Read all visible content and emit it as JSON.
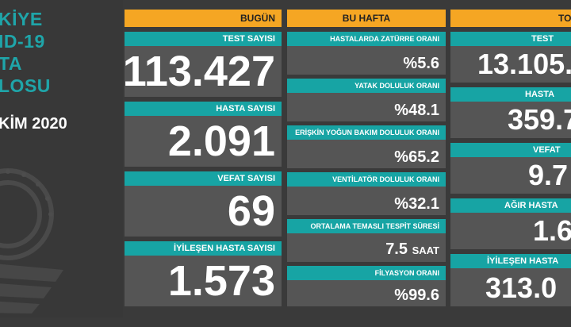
{
  "left_panel": {
    "title_lines": [
      "KİYE",
      "ID-19",
      "TA",
      "LOSU"
    ],
    "date": "KİM 2020"
  },
  "bugun": {
    "header": "BUGÜN",
    "items": [
      {
        "label": "TEST SAYISI",
        "value": "113.427"
      },
      {
        "label": "HASTA SAYISI",
        "value": "2.091"
      },
      {
        "label": "VEFAT SAYISI",
        "value": "69"
      },
      {
        "label": "İYİLEŞEN HASTA SAYISI",
        "value": "1.573"
      }
    ]
  },
  "bu_hafta": {
    "header": "BU HAFTA",
    "items": [
      {
        "label": "HASTALARDA ZATÜRRE ORANI",
        "value": "%5.6"
      },
      {
        "label": "YATAK DOLULUK ORANI",
        "value": "%48.1"
      },
      {
        "label": "ERİŞKİN YOĞUN BAKIM DOLULUK ORANI",
        "value": "%65.2"
      },
      {
        "label": "VENTİLATÖR DOLULUK ORANI",
        "value": "%32.1"
      },
      {
        "label": "ORTALAMA TEMASLI TESPİT SÜRESİ",
        "value": "7.5",
        "unit": "SAAT"
      },
      {
        "label": "FİLYASYON ORANI",
        "value": "%99.6"
      }
    ]
  },
  "toplam": {
    "header": "TO",
    "items": [
      {
        "label": "TEST",
        "value": "13.105.6"
      },
      {
        "label": "HASTA",
        "value": "359.7"
      },
      {
        "label": "VEFAT",
        "value": "9.7"
      },
      {
        "label": "AĞIR HASTA",
        "value": "1.6"
      },
      {
        "label": "İYİLEŞEN HASTA",
        "value": "313.0"
      }
    ]
  },
  "colors": {
    "background": "#3a3a3a",
    "header": "#f5a623",
    "label_bar": "#17a4a4",
    "value_box": "#555555",
    "title_teal": "#1fa5a9"
  }
}
